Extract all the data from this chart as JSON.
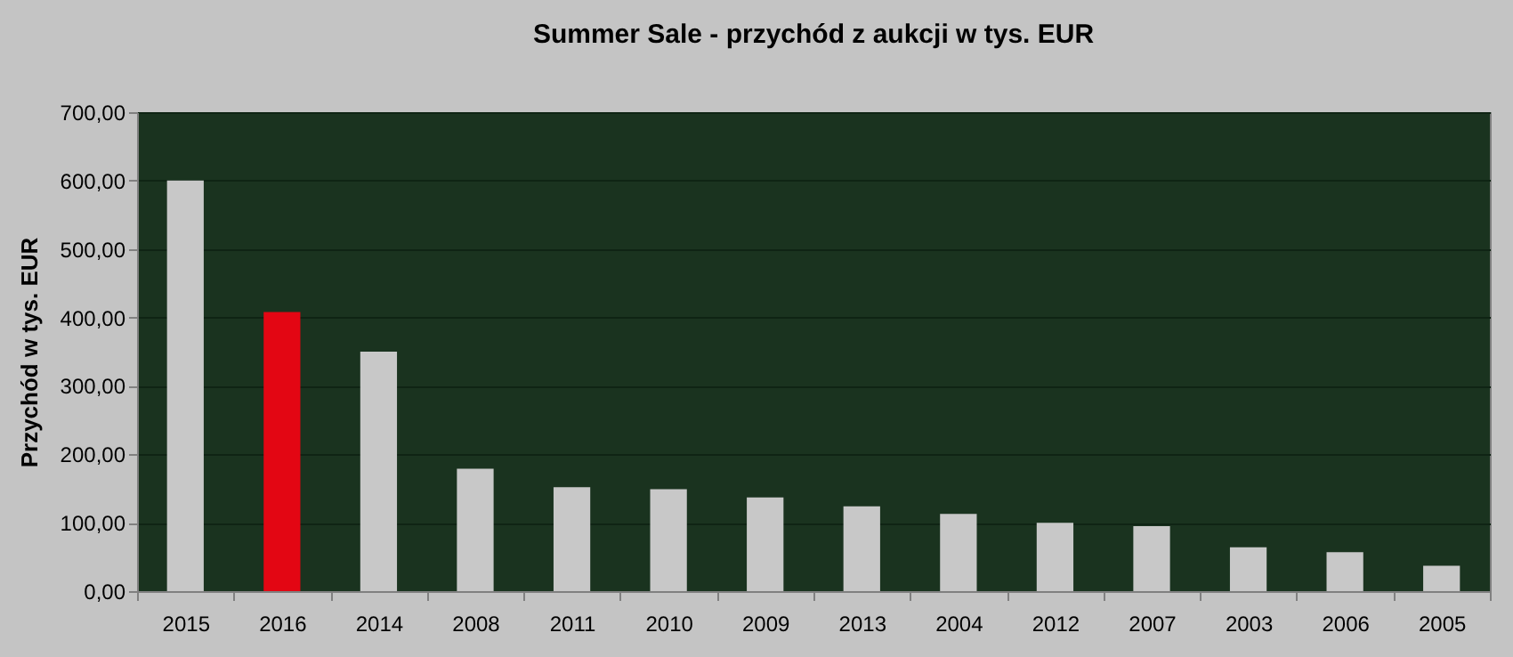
{
  "chart_data": {
    "type": "bar",
    "title": "Summer Sale - przychód z aukcji w tys. EUR",
    "ylabel": "Przychód w tys. EUR",
    "categories": [
      "2015",
      "2016",
      "2014",
      "2008",
      "2011",
      "2010",
      "2009",
      "2013",
      "2004",
      "2012",
      "2007",
      "2003",
      "2006",
      "2005"
    ],
    "values": [
      600,
      408,
      350,
      179,
      152,
      149,
      137,
      124,
      113,
      100,
      95,
      64,
      57,
      37
    ],
    "colors": [
      "#c8c8c8",
      "#e30613",
      "#c8c8c8",
      "#c8c8c8",
      "#c8c8c8",
      "#c8c8c8",
      "#c8c8c8",
      "#c8c8c8",
      "#c8c8c8",
      "#c8c8c8",
      "#c8c8c8",
      "#c8c8c8",
      "#c8c8c8",
      "#c8c8c8"
    ],
    "ylim": [
      0,
      700
    ],
    "yticks": [
      {
        "value": 0,
        "label": "0,00"
      },
      {
        "value": 100,
        "label": "100,00"
      },
      {
        "value": 200,
        "label": "200,00"
      },
      {
        "value": 300,
        "label": "300,00"
      },
      {
        "value": 400,
        "label": "400,00"
      },
      {
        "value": 500,
        "label": "500,00"
      },
      {
        "value": 600,
        "label": "600,00"
      },
      {
        "value": 700,
        "label": "700,00"
      }
    ],
    "grid": "y"
  }
}
